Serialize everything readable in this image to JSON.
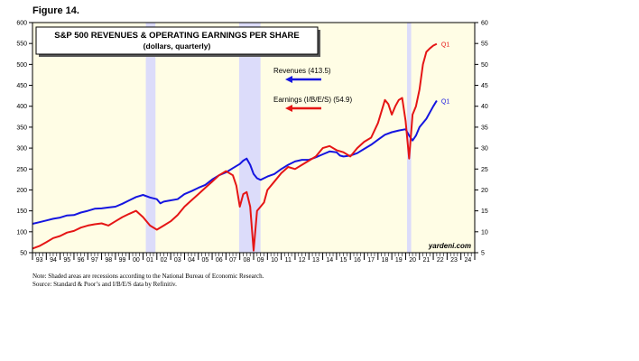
{
  "figure_label": "Figure 14.",
  "notes": [
    "Note: Shaded areas are recessions according to the National Bureau of Economic Research.",
    "Source: Standard & Poor’s and I/B/E/S data by Refinitiv."
  ],
  "colors": {
    "background": "#fffde5",
    "recession": "#dcdcfa",
    "revenues": "#1515e0",
    "earnings": "#e51515"
  },
  "chart_data": {
    "type": "line",
    "title": "S&P 500 REVENUES & OPERATING EARNINGS PER SHARE",
    "subtitle": "(dollars, quarterly)",
    "watermark": "yardeni.com",
    "x_range": [
      1993.0,
      2025.0
    ],
    "x_ticks": [
      {
        "label": "93",
        "pos": 1993
      },
      {
        "label": "94",
        "pos": 1994
      },
      {
        "label": "95",
        "pos": 1995
      },
      {
        "label": "96",
        "pos": 1996
      },
      {
        "label": "97",
        "pos": 1997
      },
      {
        "label": "98",
        "pos": 1998
      },
      {
        "label": "99",
        "pos": 1999
      },
      {
        "label": "00",
        "pos": 2000
      },
      {
        "label": "01",
        "pos": 2001
      },
      {
        "label": "02",
        "pos": 2002
      },
      {
        "label": "03",
        "pos": 2003
      },
      {
        "label": "04",
        "pos": 2004
      },
      {
        "label": "05",
        "pos": 2005
      },
      {
        "label": "06",
        "pos": 2006
      },
      {
        "label": "07",
        "pos": 2007
      },
      {
        "label": "08",
        "pos": 2008
      },
      {
        "label": "09",
        "pos": 2009
      },
      {
        "label": "10",
        "pos": 2010
      },
      {
        "label": "11",
        "pos": 2011
      },
      {
        "label": "12",
        "pos": 2012
      },
      {
        "label": "13",
        "pos": 2013
      },
      {
        "label": "14",
        "pos": 2014
      },
      {
        "label": "15",
        "pos": 2015
      },
      {
        "label": "16",
        "pos": 2016
      },
      {
        "label": "17",
        "pos": 2017
      },
      {
        "label": "18",
        "pos": 2018
      },
      {
        "label": "19",
        "pos": 2019
      },
      {
        "label": "20",
        "pos": 2020
      },
      {
        "label": "21",
        "pos": 2021
      },
      {
        "label": "22",
        "pos": 2022
      },
      {
        "label": "23",
        "pos": 2023
      },
      {
        "label": "24",
        "pos": 2024
      }
    ],
    "y_left": {
      "range": [
        50,
        600
      ],
      "ticks": [
        50,
        100,
        150,
        200,
        250,
        300,
        350,
        400,
        450,
        500,
        550,
        600
      ]
    },
    "y_right": {
      "range": [
        5,
        60
      ],
      "ticks": [
        5,
        10,
        15,
        20,
        25,
        30,
        35,
        40,
        45,
        50,
        55,
        60
      ]
    },
    "recessions": [
      {
        "start": 2001.2,
        "end": 2001.9
      },
      {
        "start": 2007.95,
        "end": 2009.5
      },
      {
        "start": 2020.1,
        "end": 2020.4
      }
    ],
    "series": [
      {
        "name": "Revenues (413.5)",
        "axis": "left",
        "end_label": "Q1",
        "points": [
          [
            1993.0,
            119
          ],
          [
            1993.5,
            123
          ],
          [
            1994.0,
            127
          ],
          [
            1994.5,
            131
          ],
          [
            1995.0,
            134
          ],
          [
            1995.5,
            139
          ],
          [
            1996.0,
            140
          ],
          [
            1996.5,
            146
          ],
          [
            1997.0,
            150
          ],
          [
            1997.5,
            155
          ],
          [
            1998.0,
            156
          ],
          [
            1998.5,
            158
          ],
          [
            1999.0,
            160
          ],
          [
            1999.5,
            167
          ],
          [
            2000.0,
            175
          ],
          [
            2000.5,
            183
          ],
          [
            2001.0,
            188
          ],
          [
            2001.5,
            182
          ],
          [
            2002.0,
            178
          ],
          [
            2002.25,
            168
          ],
          [
            2002.5,
            172
          ],
          [
            2003.0,
            175
          ],
          [
            2003.5,
            178
          ],
          [
            2004.0,
            190
          ],
          [
            2004.5,
            197
          ],
          [
            2005.0,
            205
          ],
          [
            2005.5,
            212
          ],
          [
            2006.0,
            225
          ],
          [
            2006.5,
            235
          ],
          [
            2007.0,
            242
          ],
          [
            2007.5,
            252
          ],
          [
            2008.0,
            262
          ],
          [
            2008.25,
            270
          ],
          [
            2008.5,
            275
          ],
          [
            2008.75,
            260
          ],
          [
            2009.0,
            238
          ],
          [
            2009.25,
            228
          ],
          [
            2009.5,
            224
          ],
          [
            2010.0,
            232
          ],
          [
            2010.5,
            238
          ],
          [
            2011.0,
            250
          ],
          [
            2011.5,
            260
          ],
          [
            2012.0,
            268
          ],
          [
            2012.5,
            272
          ],
          [
            2013.0,
            272
          ],
          [
            2013.5,
            278
          ],
          [
            2014.0,
            285
          ],
          [
            2014.5,
            292
          ],
          [
            2015.0,
            290
          ],
          [
            2015.25,
            282
          ],
          [
            2015.5,
            280
          ],
          [
            2016.0,
            282
          ],
          [
            2016.5,
            288
          ],
          [
            2017.0,
            298
          ],
          [
            2017.5,
            308
          ],
          [
            2018.0,
            320
          ],
          [
            2018.5,
            332
          ],
          [
            2019.0,
            338
          ],
          [
            2019.5,
            342
          ],
          [
            2020.0,
            345
          ],
          [
            2020.25,
            330
          ],
          [
            2020.5,
            318
          ],
          [
            2020.75,
            330
          ],
          [
            2021.0,
            350
          ],
          [
            2021.5,
            370
          ],
          [
            2021.75,
            385
          ],
          [
            2022.0,
            400
          ],
          [
            2022.25,
            413.5
          ]
        ]
      },
      {
        "name": "Earnings (I/B/E/S) (54.9)",
        "axis": "right",
        "end_label": "Q1",
        "points": [
          [
            1993.0,
            6.0
          ],
          [
            1993.5,
            6.6
          ],
          [
            1994.0,
            7.5
          ],
          [
            1994.5,
            8.5
          ],
          [
            1995.0,
            9.0
          ],
          [
            1995.5,
            9.8
          ],
          [
            1996.0,
            10.2
          ],
          [
            1996.5,
            11.0
          ],
          [
            1997.0,
            11.5
          ],
          [
            1997.5,
            11.8
          ],
          [
            1998.0,
            12.0
          ],
          [
            1998.5,
            11.5
          ],
          [
            1999.0,
            12.5
          ],
          [
            1999.5,
            13.5
          ],
          [
            2000.0,
            14.3
          ],
          [
            2000.5,
            15.0
          ],
          [
            2001.0,
            13.5
          ],
          [
            2001.5,
            11.5
          ],
          [
            2002.0,
            10.5
          ],
          [
            2002.5,
            11.5
          ],
          [
            2003.0,
            12.5
          ],
          [
            2003.5,
            14.0
          ],
          [
            2004.0,
            16.0
          ],
          [
            2004.5,
            17.5
          ],
          [
            2005.0,
            19.0
          ],
          [
            2005.5,
            20.5
          ],
          [
            2006.0,
            22.0
          ],
          [
            2006.5,
            23.5
          ],
          [
            2007.0,
            24.5
          ],
          [
            2007.5,
            23.5
          ],
          [
            2007.75,
            21.0
          ],
          [
            2008.0,
            16.0
          ],
          [
            2008.25,
            19.0
          ],
          [
            2008.5,
            19.5
          ],
          [
            2008.75,
            16.0
          ],
          [
            2009.0,
            5.5
          ],
          [
            2009.25,
            15.0
          ],
          [
            2009.5,
            16.0
          ],
          [
            2009.75,
            17.0
          ],
          [
            2010.0,
            20.0
          ],
          [
            2010.5,
            22.0
          ],
          [
            2011.0,
            24.0
          ],
          [
            2011.5,
            25.5
          ],
          [
            2012.0,
            25.0
          ],
          [
            2012.5,
            26.0
          ],
          [
            2013.0,
            27.0
          ],
          [
            2013.5,
            28.0
          ],
          [
            2014.0,
            30.0
          ],
          [
            2014.5,
            30.5
          ],
          [
            2015.0,
            29.5
          ],
          [
            2015.5,
            29.0
          ],
          [
            2016.0,
            28.0
          ],
          [
            2016.5,
            30.0
          ],
          [
            2017.0,
            31.5
          ],
          [
            2017.5,
            32.5
          ],
          [
            2018.0,
            36.0
          ],
          [
            2018.5,
            41.5
          ],
          [
            2018.75,
            40.5
          ],
          [
            2019.0,
            38.0
          ],
          [
            2019.25,
            40.0
          ],
          [
            2019.5,
            41.5
          ],
          [
            2019.75,
            42.0
          ],
          [
            2020.0,
            36.5
          ],
          [
            2020.25,
            27.5
          ],
          [
            2020.5,
            38.0
          ],
          [
            2020.75,
            40.0
          ],
          [
            2021.0,
            44.0
          ],
          [
            2021.25,
            50.0
          ],
          [
            2021.5,
            53.0
          ],
          [
            2021.75,
            53.8
          ],
          [
            2022.0,
            54.5
          ],
          [
            2022.25,
            54.9
          ]
        ]
      }
    ]
  }
}
